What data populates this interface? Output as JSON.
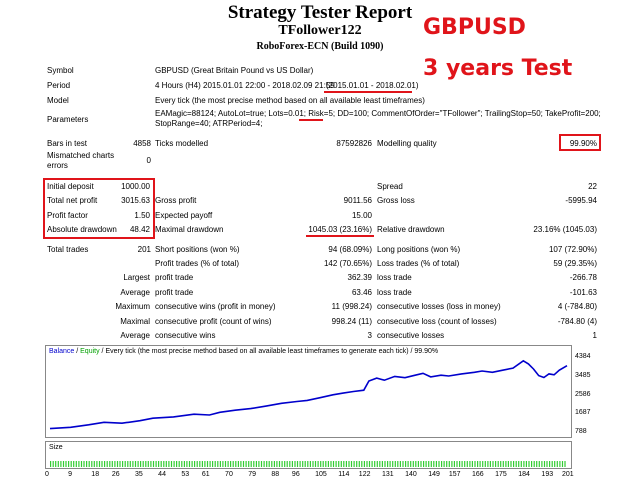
{
  "header": {
    "title": "Strategy Tester Report",
    "expert": "TFollower122",
    "server": "RoboForex-ECN (Build 1090)",
    "overlay_pair": "GBPUSD",
    "overlay_test": "3 years Test"
  },
  "info": {
    "symbol_label": "Symbol",
    "symbol_value": "GBPUSD (Great Britain Pound vs US Dollar)",
    "period_label": "Period",
    "period_value": "4 Hours (H4) 2015.01.01 22:00 - 2018.02.09 21:59",
    "period_range": "(2015.01.01 - 2018.02.01)",
    "model_label": "Model",
    "model_value": "Every tick (the most precise method based on all available least timeframes)",
    "parameters_label": "Parameters",
    "parameters_line1": "EAMagic=88124; AutoLot=true; Lots=0.01; Risk=5; DD=100; CommentOfOrder=\"TFollower\"; TrailingStop=50; TakeProfit=200;",
    "parameters_line2": "StopRange=40; ATRPeriod=4;",
    "bars_label": "Bars in test",
    "bars_value": "4858",
    "ticks_label": "Ticks modelled",
    "ticks_value": "87592826",
    "quality_label": "Modelling quality",
    "quality_value": "99.90%",
    "mismatch_label_1": "Mismatched charts",
    "mismatch_label_2": "errors",
    "mismatch_value": "0"
  },
  "stats": {
    "initial_deposit_label": "Initial deposit",
    "initial_deposit": "1000.00",
    "spread_label": "Spread",
    "spread": "22",
    "total_net_profit_label": "Total net profit",
    "total_net_profit": "3015.63",
    "gross_profit_label": "Gross profit",
    "gross_profit": "9011.56",
    "gross_loss_label": "Gross loss",
    "gross_loss": "-5995.94",
    "profit_factor_label": "Profit factor",
    "profit_factor": "1.50",
    "expected_payoff_label": "Expected payoff",
    "expected_payoff": "15.00",
    "absolute_drawdown_label": "Absolute drawdown",
    "absolute_drawdown": "48.42",
    "maximal_drawdown_label": "Maximal drawdown",
    "maximal_drawdown": "1045.03 (23.16%)",
    "relative_drawdown_label": "Relative drawdown",
    "relative_drawdown": "23.16% (1045.03)",
    "total_trades_label": "Total trades",
    "total_trades": "201",
    "short_positions_label": "Short positions (won %)",
    "short_positions": "94 (68.09%)",
    "long_positions_label": "Long positions (won %)",
    "long_positions": "107 (72.90%)",
    "profit_trades_label": "Profit trades (% of total)",
    "profit_trades": "142 (70.65%)",
    "loss_trades_label": "Loss trades (% of total)",
    "loss_trades": "59 (29.35%)",
    "largest_label": "Largest",
    "largest_profit_label": "profit trade",
    "largest_profit": "362.39",
    "largest_loss_label": "loss trade",
    "largest_loss": "-266.78",
    "average_label": "Average",
    "average_profit_label": "profit trade",
    "average_profit": "63.46",
    "average_loss_label": "loss trade",
    "average_loss": "-101.63",
    "maximum_label": "Maximum",
    "max_cons_wins_label": "consecutive wins (profit in money)",
    "max_cons_wins": "11 (998.24)",
    "max_cons_losses_label": "consecutive losses (loss in money)",
    "max_cons_losses": "4 (-784.80)",
    "maximal_label": "Maximal",
    "maximal_cons_profit_label": "consecutive profit (count of wins)",
    "maximal_cons_profit": "998.24 (11)",
    "maximal_cons_loss_label": "consecutive loss (count of losses)",
    "maximal_cons_loss": "-784.80 (4)",
    "average2_label": "Average",
    "avg_cons_wins_label": "consecutive wins",
    "avg_cons_wins": "3",
    "avg_cons_losses_label": "consecutive losses",
    "avg_cons_losses": "1"
  },
  "chart_legend": {
    "balance": "Balance",
    "sep": " / ",
    "equity": "Equity",
    "rest": " / Every tick (the most precise method based on all available least timeframes to generate each tick) / 99.90%"
  },
  "colors": {
    "balance": "#0000cc",
    "equity": "#00a000",
    "size": "#33cc33",
    "highlight": "#e0141a"
  },
  "chart_data": {
    "type": "line",
    "title": "",
    "x": [
      0,
      8,
      15,
      21,
      28,
      35,
      40,
      48,
      56,
      62,
      66,
      72,
      78,
      84,
      90,
      96,
      100,
      105,
      110,
      114,
      118,
      122,
      124,
      127,
      130,
      134,
      138,
      142,
      145,
      148,
      152,
      155,
      160,
      165,
      168,
      172,
      176,
      180,
      184,
      186,
      188,
      190,
      192,
      194,
      196,
      198,
      201
    ],
    "series": [
      {
        "name": "Balance",
        "values": [
          1000,
          1060,
          1180,
          1300,
          1260,
          1380,
          1500,
          1560,
          1690,
          1650,
          1780,
          1880,
          1960,
          2080,
          2210,
          2300,
          2350,
          2480,
          2620,
          2700,
          2780,
          2840,
          3280,
          3420,
          3320,
          3500,
          3440,
          3560,
          3650,
          3480,
          3560,
          3520,
          3620,
          3700,
          3760,
          3700,
          3800,
          3900,
          4250,
          4100,
          3850,
          3540,
          3450,
          3620,
          3580,
          3800,
          4016
        ]
      }
    ],
    "yticks": [
      "4384",
      "3485",
      "2586",
      "1687",
      "788"
    ],
    "xticks": [
      "0",
      "9",
      "18",
      "26",
      "35",
      "44",
      "53",
      "61",
      "70",
      "79",
      "88",
      "96",
      "105",
      "114",
      "122",
      "131",
      "140",
      "149",
      "157",
      "166",
      "175",
      "184",
      "193",
      "201"
    ],
    "ylim": [
      788,
      4384
    ],
    "xlim": [
      0,
      201
    ],
    "size_label": "Size",
    "grid": false
  }
}
